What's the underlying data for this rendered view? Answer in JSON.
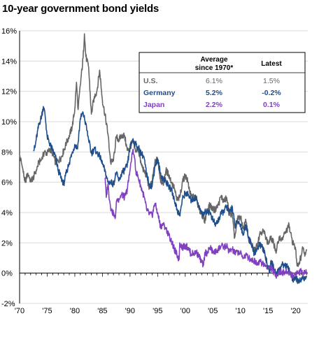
{
  "title": "10-year government bond yields",
  "colors": {
    "us": "#666666",
    "germany": "#1f4e8c",
    "japan": "#8040c0",
    "grid": "#d9d9d9"
  },
  "table": {
    "col_avg_line1": "Average",
    "col_avg_line2": "since 1970*",
    "col_latest": "Latest",
    "rows": [
      {
        "name": "U.S.",
        "avg": "6.1%",
        "latest": "1.5%"
      },
      {
        "name": "Germany",
        "avg": "5.2%",
        "latest": "-0.2%"
      },
      {
        "name": "Japan",
        "avg": "2.2%",
        "latest": "0.1%"
      }
    ]
  },
  "chart_data": {
    "type": "line",
    "title": "10-year government bond yields",
    "x_ticks": [
      "'70",
      "'75",
      "'80",
      "'85",
      "'90",
      "'95",
      "'00",
      "'05",
      "'10",
      "'15",
      "'20"
    ],
    "x_tick_years": [
      1970,
      1975,
      1980,
      1985,
      1990,
      1995,
      2000,
      2005,
      2010,
      2015,
      2020
    ],
    "y_ticks": [
      "16%",
      "14%",
      "12%",
      "10%",
      "8%",
      "6%",
      "4%",
      "2%",
      "0%",
      "-2%"
    ],
    "y_tick_values": [
      16,
      14,
      12,
      10,
      8,
      6,
      4,
      2,
      0,
      -2
    ],
    "xlim": [
      1970,
      2022.2
    ],
    "ylim": [
      -2,
      16
    ],
    "grid": "horizontal",
    "series": [
      {
        "name": "U.S.",
        "key": "us",
        "color": "#666666",
        "points": [
          [
            1970,
            7.8
          ],
          [
            1970.5,
            7.0
          ],
          [
            1971,
            6.0
          ],
          [
            1971.5,
            6.6
          ],
          [
            1972,
            6.1
          ],
          [
            1972.5,
            6.3
          ],
          [
            1973,
            6.8
          ],
          [
            1973.5,
            7.3
          ],
          [
            1974,
            7.5
          ],
          [
            1974.5,
            8.0
          ],
          [
            1975,
            7.9
          ],
          [
            1975.5,
            8.2
          ],
          [
            1976,
            7.9
          ],
          [
            1976.5,
            7.3
          ],
          [
            1977,
            7.4
          ],
          [
            1977.5,
            7.6
          ],
          [
            1978,
            8.1
          ],
          [
            1978.5,
            8.6
          ],
          [
            1979,
            9.1
          ],
          [
            1979.5,
            9.6
          ],
          [
            1980,
            10.8
          ],
          [
            1980.3,
            12.6
          ],
          [
            1980.6,
            10.8
          ],
          [
            1981,
            12.4
          ],
          [
            1981.5,
            14.2
          ],
          [
            1981.75,
            15.8
          ],
          [
            1982,
            14.3
          ],
          [
            1982.5,
            13.6
          ],
          [
            1983,
            10.5
          ],
          [
            1983.5,
            11.6
          ],
          [
            1984,
            12.0
          ],
          [
            1984.5,
            13.4
          ],
          [
            1985,
            11.4
          ],
          [
            1985.5,
            10.4
          ],
          [
            1986,
            9.2
          ],
          [
            1986.5,
            7.3
          ],
          [
            1987,
            7.4
          ],
          [
            1987.5,
            9.0
          ],
          [
            1988,
            8.8
          ],
          [
            1988.5,
            9.1
          ],
          [
            1989,
            9.1
          ],
          [
            1989.5,
            8.1
          ],
          [
            1990,
            8.3
          ],
          [
            1990.5,
            8.7
          ],
          [
            1991,
            8.0
          ],
          [
            1991.5,
            8.2
          ],
          [
            1992,
            7.2
          ],
          [
            1992.5,
            6.8
          ],
          [
            1993,
            6.4
          ],
          [
            1993.5,
            5.6
          ],
          [
            1994,
            6.0
          ],
          [
            1994.5,
            7.3
          ],
          [
            1995,
            7.6
          ],
          [
            1995.5,
            6.2
          ],
          [
            1996,
            5.9
          ],
          [
            1996.5,
            6.8
          ],
          [
            1997,
            6.5
          ],
          [
            1997.5,
            6.0
          ],
          [
            1998,
            5.6
          ],
          [
            1998.5,
            4.8
          ],
          [
            1999,
            5.0
          ],
          [
            1999.5,
            6.0
          ],
          [
            2000,
            6.5
          ],
          [
            2000.5,
            6.0
          ],
          [
            2001,
            5.1
          ],
          [
            2001.5,
            5.0
          ],
          [
            2002,
            5.0
          ],
          [
            2002.5,
            4.2
          ],
          [
            2003,
            3.9
          ],
          [
            2003.5,
            3.4
          ],
          [
            2004,
            4.2
          ],
          [
            2004.5,
            4.5
          ],
          [
            2005,
            4.2
          ],
          [
            2005.5,
            4.2
          ],
          [
            2006,
            4.5
          ],
          [
            2006.5,
            5.1
          ],
          [
            2007,
            4.7
          ],
          [
            2007.5,
            5.0
          ],
          [
            2008,
            3.8
          ],
          [
            2008.5,
            4.0
          ],
          [
            2008.9,
            2.3
          ],
          [
            2009,
            2.4
          ],
          [
            2009.5,
            3.6
          ],
          [
            2010,
            3.7
          ],
          [
            2010.5,
            3.0
          ],
          [
            2011,
            3.4
          ],
          [
            2011.5,
            2.2
          ],
          [
            2012,
            1.9
          ],
          [
            2012.5,
            1.5
          ],
          [
            2013,
            1.9
          ],
          [
            2013.5,
            2.6
          ],
          [
            2014,
            2.8
          ],
          [
            2014.5,
            2.5
          ],
          [
            2015,
            1.9
          ],
          [
            2015.5,
            2.3
          ],
          [
            2016,
            2.0
          ],
          [
            2016.5,
            1.4
          ],
          [
            2017,
            2.4
          ],
          [
            2017.5,
            2.2
          ],
          [
            2018,
            2.6
          ],
          [
            2018.5,
            2.9
          ],
          [
            2018.8,
            3.2
          ],
          [
            2019,
            2.7
          ],
          [
            2019.5,
            2.0
          ],
          [
            2019.8,
            1.8
          ],
          [
            2020,
            1.6
          ],
          [
            2020.2,
            0.7
          ],
          [
            2020.5,
            0.6
          ],
          [
            2021,
            1.1
          ],
          [
            2021.3,
            1.7
          ],
          [
            2021.6,
            1.3
          ],
          [
            2022,
            1.5
          ]
        ]
      },
      {
        "name": "Germany",
        "key": "germany",
        "color": "#1f4e8c",
        "points": [
          [
            1972.5,
            8.1
          ],
          [
            1972.8,
            8.3
          ],
          [
            1973,
            8.8
          ],
          [
            1973.5,
            9.8
          ],
          [
            1974,
            10.4
          ],
          [
            1974.3,
            11.0
          ],
          [
            1974.6,
            10.5
          ],
          [
            1975,
            9.0
          ],
          [
            1975.5,
            8.5
          ],
          [
            1976,
            8.1
          ],
          [
            1976.5,
            7.7
          ],
          [
            1977,
            6.8
          ],
          [
            1977.5,
            6.3
          ],
          [
            1978,
            5.9
          ],
          [
            1978.3,
            6.4
          ],
          [
            1978.6,
            6.8
          ],
          [
            1979,
            7.3
          ],
          [
            1979.5,
            7.9
          ],
          [
            1980,
            8.5
          ],
          [
            1980.5,
            8.2
          ],
          [
            1981,
            10.2
          ],
          [
            1981.5,
            10.6
          ],
          [
            1982,
            9.8
          ],
          [
            1982.5,
            8.8
          ],
          [
            1983,
            7.9
          ],
          [
            1983.5,
            8.2
          ],
          [
            1984,
            8.0
          ],
          [
            1984.5,
            7.7
          ],
          [
            1985,
            7.2
          ],
          [
            1985.5,
            6.7
          ],
          [
            1986,
            6.0
          ],
          [
            1986.5,
            6.0
          ],
          [
            1987,
            5.9
          ],
          [
            1987.5,
            6.6
          ],
          [
            1988,
            6.1
          ],
          [
            1988.5,
            6.6
          ],
          [
            1989,
            6.8
          ],
          [
            1989.5,
            7.1
          ],
          [
            1990,
            8.3
          ],
          [
            1990.5,
            8.8
          ],
          [
            1991,
            8.5
          ],
          [
            1991.5,
            8.3
          ],
          [
            1992,
            7.9
          ],
          [
            1992.5,
            7.7
          ],
          [
            1993,
            6.5
          ],
          [
            1993.5,
            5.9
          ],
          [
            1994,
            5.7
          ],
          [
            1994.5,
            7.1
          ],
          [
            1995,
            7.5
          ],
          [
            1995.5,
            6.6
          ],
          [
            1996,
            6.2
          ],
          [
            1996.5,
            6.1
          ],
          [
            1997,
            5.7
          ],
          [
            1997.5,
            5.5
          ],
          [
            1998,
            4.9
          ],
          [
            1998.5,
            4.2
          ],
          [
            1999,
            3.8
          ],
          [
            1999.5,
            4.9
          ],
          [
            2000,
            5.3
          ],
          [
            2000.5,
            5.2
          ],
          [
            2001,
            4.8
          ],
          [
            2001.5,
            4.9
          ],
          [
            2002,
            5.0
          ],
          [
            2002.5,
            4.4
          ],
          [
            2003,
            3.9
          ],
          [
            2003.5,
            4.0
          ],
          [
            2004,
            4.1
          ],
          [
            2004.5,
            4.0
          ],
          [
            2005,
            3.5
          ],
          [
            2005.5,
            3.2
          ],
          [
            2006,
            3.5
          ],
          [
            2006.5,
            3.9
          ],
          [
            2007,
            4.1
          ],
          [
            2007.5,
            4.4
          ],
          [
            2008,
            4.0
          ],
          [
            2008.5,
            4.4
          ],
          [
            2009,
            3.1
          ],
          [
            2009.5,
            3.4
          ],
          [
            2010,
            3.2
          ],
          [
            2010.5,
            2.5
          ],
          [
            2011,
            3.2
          ],
          [
            2011.5,
            2.4
          ],
          [
            2012,
            1.8
          ],
          [
            2012.5,
            1.3
          ],
          [
            2013,
            1.6
          ],
          [
            2013.5,
            1.9
          ],
          [
            2014,
            1.7
          ],
          [
            2014.5,
            1.1
          ],
          [
            2015,
            0.4
          ],
          [
            2015.3,
            0.1
          ],
          [
            2015.5,
            0.8
          ],
          [
            2016,
            0.4
          ],
          [
            2016.5,
            -0.1
          ],
          [
            2017,
            0.3
          ],
          [
            2017.5,
            0.5
          ],
          [
            2018,
            0.6
          ],
          [
            2018.5,
            0.4
          ],
          [
            2019,
            0.1
          ],
          [
            2019.5,
            -0.5
          ],
          [
            2019.8,
            -0.3
          ],
          [
            2020,
            -0.4
          ],
          [
            2020.5,
            -0.5
          ],
          [
            2021,
            -0.5
          ],
          [
            2021.3,
            -0.2
          ],
          [
            2021.6,
            -0.4
          ],
          [
            2022,
            -0.2
          ]
        ]
      },
      {
        "name": "Japan",
        "key": "japan",
        "color": "#8040c0",
        "points": [
          [
            1985.5,
            6.3
          ],
          [
            1985.7,
            5.0
          ],
          [
            1986,
            5.9
          ],
          [
            1986.3,
            4.8
          ],
          [
            1986.6,
            4.2
          ],
          [
            1987,
            3.9
          ],
          [
            1987.3,
            3.6
          ],
          [
            1987.6,
            4.8
          ],
          [
            1988,
            4.9
          ],
          [
            1988.5,
            5.2
          ],
          [
            1989,
            5.0
          ],
          [
            1989.5,
            5.5
          ],
          [
            1990,
            6.8
          ],
          [
            1990.3,
            7.6
          ],
          [
            1990.5,
            8.1
          ],
          [
            1990.8,
            7.6
          ],
          [
            1991,
            6.8
          ],
          [
            1991.5,
            6.3
          ],
          [
            1992,
            5.7
          ],
          [
            1992.5,
            5.1
          ],
          [
            1993,
            4.2
          ],
          [
            1993.5,
            3.9
          ],
          [
            1994,
            3.8
          ],
          [
            1994.5,
            4.6
          ],
          [
            1995,
            4.0
          ],
          [
            1995.5,
            3.1
          ],
          [
            1996,
            3.2
          ],
          [
            1996.5,
            3.0
          ],
          [
            1997,
            2.5
          ],
          [
            1997.5,
            2.1
          ],
          [
            1998,
            1.6
          ],
          [
            1998.5,
            1.2
          ],
          [
            1998.9,
            0.9
          ],
          [
            1999,
            2.0
          ],
          [
            1999.5,
            1.7
          ],
          [
            2000,
            1.8
          ],
          [
            2000.5,
            1.7
          ],
          [
            2001,
            1.3
          ],
          [
            2001.5,
            1.3
          ],
          [
            2002,
            1.4
          ],
          [
            2002.5,
            1.1
          ],
          [
            2003,
            0.7
          ],
          [
            2003.3,
            0.5
          ],
          [
            2003.6,
            1.4
          ],
          [
            2004,
            1.3
          ],
          [
            2004.5,
            1.7
          ],
          [
            2005,
            1.4
          ],
          [
            2005.5,
            1.4
          ],
          [
            2006,
            1.6
          ],
          [
            2006.5,
            1.8
          ],
          [
            2007,
            1.7
          ],
          [
            2007.5,
            1.8
          ],
          [
            2008,
            1.4
          ],
          [
            2008.5,
            1.6
          ],
          [
            2009,
            1.3
          ],
          [
            2009.5,
            1.4
          ],
          [
            2010,
            1.3
          ],
          [
            2010.5,
            1.0
          ],
          [
            2011,
            1.2
          ],
          [
            2011.5,
            1.0
          ],
          [
            2012,
            0.9
          ],
          [
            2012.5,
            0.8
          ],
          [
            2013,
            0.7
          ],
          [
            2013.5,
            0.8
          ],
          [
            2014,
            0.6
          ],
          [
            2014.5,
            0.5
          ],
          [
            2015,
            0.3
          ],
          [
            2015.5,
            0.4
          ],
          [
            2016,
            0.1
          ],
          [
            2016.3,
            -0.2
          ],
          [
            2016.6,
            -0.1
          ],
          [
            2017,
            0.05
          ],
          [
            2017.5,
            0.05
          ],
          [
            2018,
            0.05
          ],
          [
            2018.5,
            0.1
          ],
          [
            2019,
            0.0
          ],
          [
            2019.5,
            -0.2
          ],
          [
            2019.8,
            -0.1
          ],
          [
            2020,
            0.0
          ],
          [
            2020.5,
            0.05
          ],
          [
            2021,
            0.1
          ],
          [
            2021.5,
            0.05
          ],
          [
            2022,
            0.1
          ]
        ]
      }
    ]
  }
}
